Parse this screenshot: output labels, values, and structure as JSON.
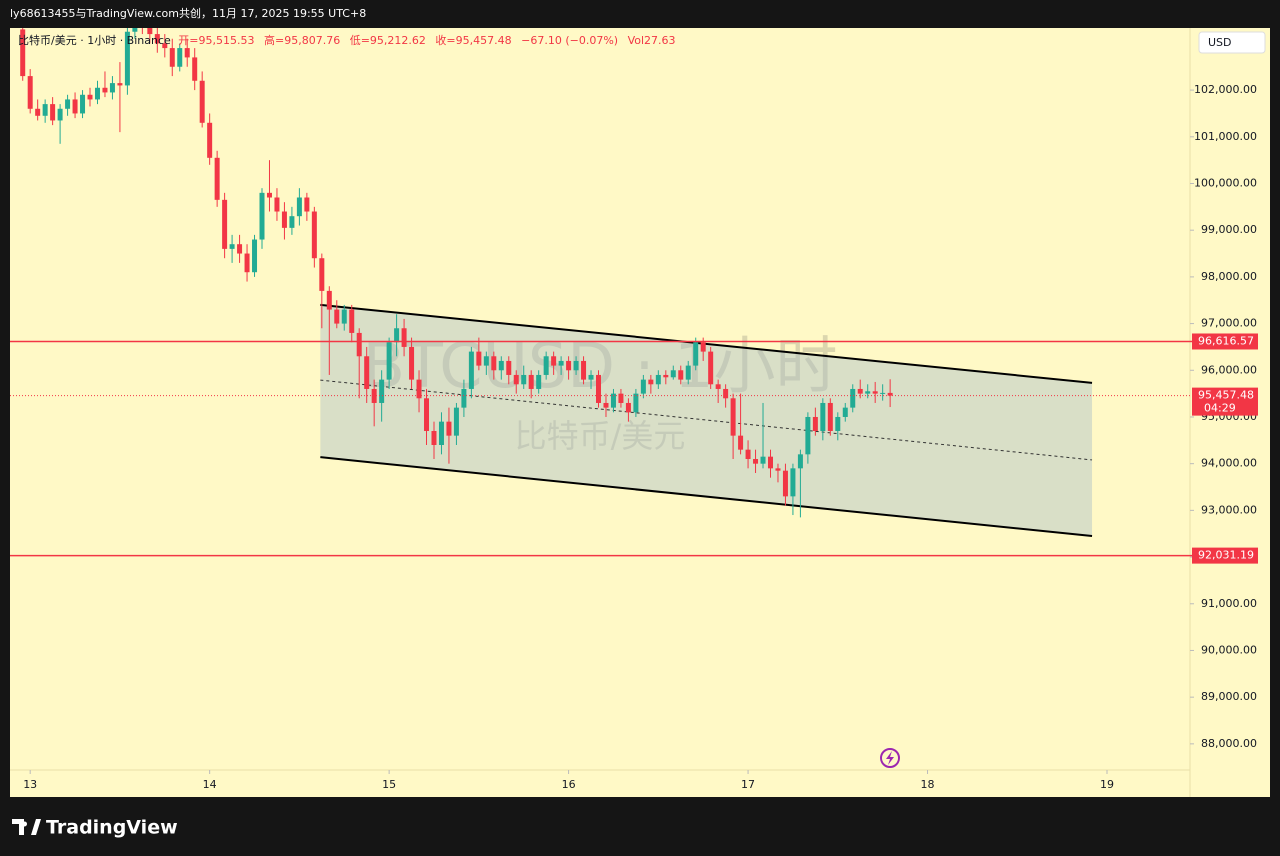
{
  "header": {
    "text": "ly68613455与TradingView.com共创，11月 17, 2025 19:55 UTC+8"
  },
  "chart_data": {
    "type": "candlestick",
    "symbol_label": "比特币/美元 · 1小时 · Binance",
    "legend": {
      "open": "开=95,515.53",
      "high": "高=95,807.76",
      "low": "低=95,212.62",
      "close": "收=95,457.48",
      "change": "−67.10 (−0.07%)",
      "volume": "Vol27.63"
    },
    "watermark": [
      "BTCUSD · 1小时",
      "比特币/美元"
    ],
    "currency": "USD",
    "up_color": "#22ab94",
    "down_color": "#f23645",
    "x": [
      -1,
      0,
      1,
      2,
      3,
      4,
      5,
      6,
      7,
      8,
      9,
      10,
      11,
      12,
      13,
      14,
      15,
      16,
      17,
      18,
      19,
      20,
      21,
      22,
      23,
      24,
      25,
      26,
      27,
      28,
      29,
      30,
      31,
      32,
      33,
      34,
      35,
      36,
      37,
      38,
      39,
      40,
      41,
      42,
      43,
      44,
      45,
      46,
      47,
      48,
      49,
      50,
      51,
      52,
      53,
      54,
      55,
      56,
      57,
      58,
      59,
      60,
      61,
      62,
      63,
      64,
      65,
      66,
      67,
      68,
      69,
      70,
      71,
      72,
      73,
      74,
      75,
      76,
      77,
      78,
      79,
      80,
      81,
      82,
      83,
      84,
      85,
      86,
      87,
      88,
      89,
      90,
      91,
      92,
      93,
      94,
      95,
      96,
      97,
      98,
      99,
      100,
      101,
      102,
      103,
      104,
      105,
      106,
      107,
      108,
      109,
      110,
      111,
      112,
      113,
      114,
      115
    ],
    "open": [
      103300,
      102300,
      101600,
      101450,
      101700,
      101350,
      101600,
      101800,
      101500,
      101900,
      101800,
      102050,
      101950,
      102150,
      102100,
      103250,
      103500,
      103400,
      103200,
      103000,
      102900,
      102500,
      102900,
      102700,
      102200,
      101300,
      100550,
      99650,
      98600,
      98700,
      98500,
      98100,
      98800,
      99800,
      99700,
      99400,
      99050,
      99300,
      99700,
      99400,
      98400,
      97700,
      97300,
      97000,
      97300,
      96800,
      96300,
      95600,
      95300,
      95800,
      96600,
      96900,
      96500,
      95800,
      95400,
      94700,
      94400,
      94900,
      94600,
      95200,
      95600,
      96400,
      96100,
      96300,
      96000,
      96200,
      95900,
      95700,
      95900,
      95600,
      95900,
      96300,
      96100,
      96200,
      96000,
      96200,
      95800,
      95900,
      95300,
      95200,
      95500,
      95300,
      95100,
      95500,
      95800,
      95700,
      95900,
      95850,
      96000,
      95800,
      96100,
      96600,
      96400,
      95700,
      95600,
      95400,
      94600,
      94300,
      94100,
      94000,
      94150,
      93900,
      93850,
      93300,
      93900,
      94200,
      95000,
      94700,
      95300,
      94700,
      95000,
      95200,
      95600,
      95500,
      95550,
      95500,
      95515.53
    ],
    "high": [
      103330,
      102450,
      101800,
      101800,
      101850,
      101700,
      101900,
      101950,
      102000,
      102050,
      102200,
      102400,
      102300,
      102600,
      103330,
      103700,
      103800,
      103600,
      103400,
      103200,
      103100,
      103000,
      103100,
      102900,
      102400,
      101500,
      100700,
      99800,
      98900,
      98900,
      98700,
      98900,
      99900,
      100500,
      99900,
      99600,
      99500,
      99900,
      99800,
      99500,
      98500,
      97800,
      97500,
      97400,
      97400,
      96900,
      96500,
      95800,
      96000,
      96700,
      97200,
      97100,
      96700,
      96000,
      95600,
      94900,
      95100,
      95200,
      95300,
      95800,
      96500,
      96700,
      96400,
      96400,
      96300,
      96300,
      96000,
      96100,
      96000,
      96000,
      96400,
      96400,
      96300,
      96300,
      96300,
      96300,
      96000,
      96000,
      95500,
      95600,
      95600,
      95400,
      95600,
      95900,
      95900,
      96000,
      96000,
      96100,
      96100,
      96200,
      96700,
      96700,
      96500,
      95800,
      95700,
      95500,
      95500,
      94500,
      94300,
      95300,
      94300,
      94000,
      94000,
      94000,
      94300,
      95100,
      95200,
      95400,
      95400,
      95100,
      95300,
      95700,
      95800,
      95700,
      95750,
      95700,
      95807.76
    ],
    "low": [
      102200,
      101500,
      101350,
      101300,
      101250,
      100850,
      101450,
      101400,
      101400,
      101650,
      101700,
      101850,
      101800,
      101100,
      101900,
      103100,
      103200,
      103000,
      102800,
      102700,
      102300,
      102400,
      102500,
      102000,
      101200,
      100400,
      99500,
      98400,
      98300,
      98300,
      97900,
      98000,
      98600,
      99400,
      99200,
      98800,
      98900,
      99100,
      99200,
      98200,
      96900,
      95900,
      96900,
      96850,
      96600,
      95400,
      95300,
      94800,
      94900,
      95600,
      96300,
      96300,
      95600,
      95100,
      94400,
      94100,
      94200,
      94000,
      94400,
      95000,
      95400,
      96000,
      95900,
      95800,
      95800,
      95700,
      95500,
      95600,
      95400,
      95500,
      95800,
      95900,
      95900,
      95800,
      95900,
      95700,
      95600,
      95200,
      95000,
      95100,
      95200,
      94900,
      95000,
      95400,
      95500,
      95600,
      95700,
      95800,
      95700,
      95700,
      96000,
      96200,
      95600,
      95300,
      95200,
      94100,
      94200,
      93900,
      93800,
      93900,
      93700,
      93600,
      93100,
      92900,
      92850,
      94000,
      94600,
      94500,
      94600,
      94500,
      94900,
      95100,
      95400,
      95400,
      95300,
      95350,
      95212.62
    ],
    "close": [
      102300,
      101600,
      101450,
      101700,
      101350,
      101600,
      101800,
      101500,
      101900,
      101800,
      102050,
      101950,
      102150,
      102100,
      103250,
      103500,
      103400,
      103200,
      103000,
      102900,
      102500,
      102900,
      102700,
      102200,
      101300,
      100550,
      99650,
      98600,
      98700,
      98500,
      98100,
      98800,
      99800,
      99700,
      99400,
      99050,
      99300,
      99700,
      99400,
      98400,
      97700,
      97300,
      97000,
      97300,
      96800,
      96300,
      95600,
      95300,
      95800,
      96600,
      96900,
      96500,
      95800,
      95400,
      94700,
      94400,
      94900,
      94600,
      95200,
      95600,
      96400,
      96100,
      96300,
      96000,
      96200,
      95900,
      95700,
      95900,
      95600,
      95900,
      96300,
      96100,
      96200,
      96000,
      96200,
      95800,
      95900,
      95300,
      95200,
      95500,
      95300,
      95100,
      95500,
      95800,
      95700,
      95900,
      95850,
      96000,
      95800,
      96100,
      96600,
      96400,
      95700,
      95600,
      95400,
      94600,
      94300,
      94100,
      94000,
      94150,
      93900,
      93850,
      93300,
      93900,
      94200,
      95000,
      94700,
      95300,
      94700,
      95000,
      95200,
      95600,
      95500,
      95550,
      95500,
      95515.53,
      95457.48
    ],
    "xlim": [
      -2.7,
      155.1
    ],
    "xticks": [
      {
        "value": 0,
        "label": "13"
      },
      {
        "value": 24,
        "label": "14"
      },
      {
        "value": 48,
        "label": "15"
      },
      {
        "value": 72,
        "label": "16"
      },
      {
        "value": 96,
        "label": "17"
      },
      {
        "value": 120,
        "label": "18"
      },
      {
        "value": 144,
        "label": "19"
      }
    ],
    "ylim": [
      87440,
      103330
    ],
    "yticks": [
      {
        "value": 88000,
        "label": "88,000.00"
      },
      {
        "value": 89000,
        "label": "89,000.00"
      },
      {
        "value": 90000,
        "label": "90,000.00"
      },
      {
        "value": 91000,
        "label": "91,000.00"
      },
      {
        "value": 92000,
        "label": "92,000.00"
      },
      {
        "value": 93000,
        "label": "93,000.00"
      },
      {
        "value": 94000,
        "label": "94,000.00"
      },
      {
        "value": 95000,
        "label": "95,000.00"
      },
      {
        "value": 96000,
        "label": "96,000.00"
      },
      {
        "value": 97000,
        "label": "97,000.00"
      },
      {
        "value": 98000,
        "label": "98,000.00"
      },
      {
        "value": 99000,
        "label": "99,000.00"
      },
      {
        "value": 100000,
        "label": "100,000.00"
      },
      {
        "value": 101000,
        "label": "101,000.00"
      },
      {
        "value": 102000,
        "label": "102,000.00"
      }
    ],
    "hlines": [
      {
        "value": 96616.57,
        "label": "96,616.57",
        "color": "#f23645"
      },
      {
        "value": 92031.19,
        "label": "92,031.19",
        "color": "#f23645"
      }
    ],
    "last_price": {
      "value": 95457.48,
      "label": "95,457.48",
      "countdown": "04:29",
      "color": "#f23645"
    },
    "channel": {
      "x": [
        38.8,
        142
      ],
      "upper": [
        97400,
        95730
      ],
      "lower": [
        94140,
        92450
      ],
      "middle": [
        95790,
        94080
      ]
    }
  },
  "footer": {
    "brand": "TradingView"
  }
}
